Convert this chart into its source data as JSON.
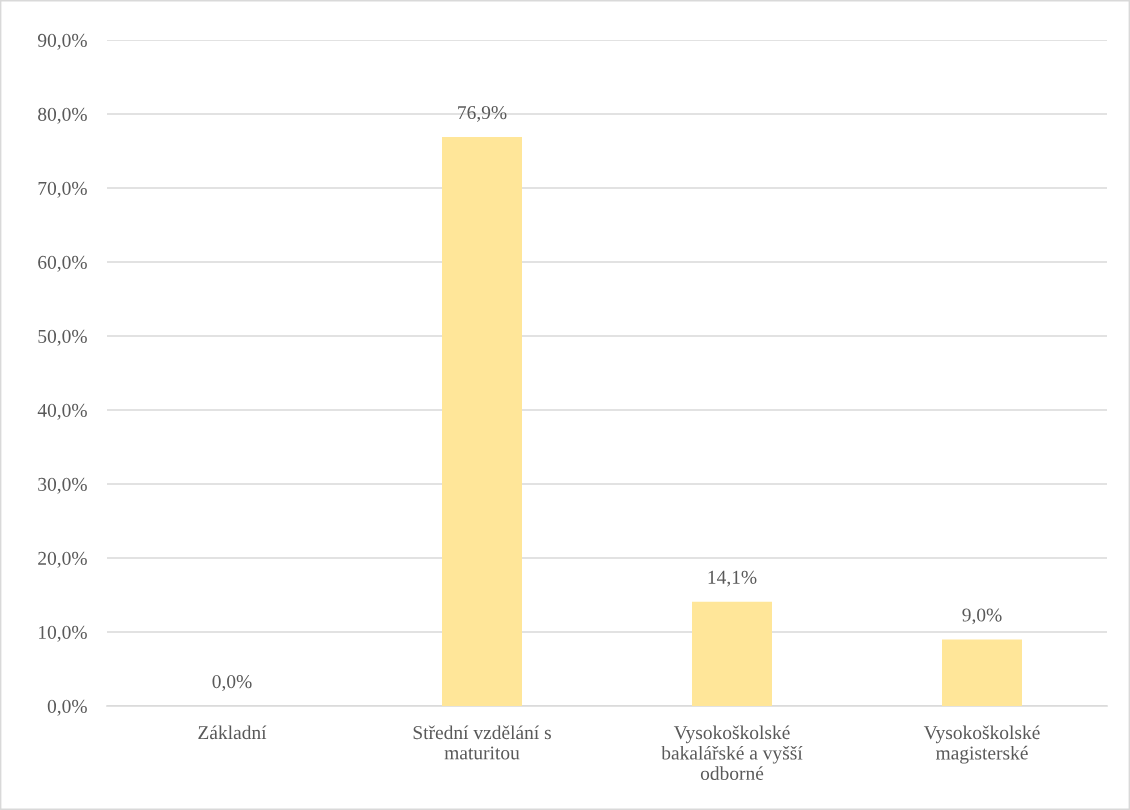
{
  "chart_data": {
    "type": "bar",
    "categories": [
      "Základní",
      "Střední vzdělání s\nmaturitou",
      "Vysokoškolské\nbakalářské a vyšší\nodborné",
      "Vysokoškolské\nmagisterské"
    ],
    "values": [
      0.0,
      76.9,
      14.1,
      9.0
    ],
    "value_labels": [
      "0,0%",
      "76,9%",
      "14,1%",
      "9,0%"
    ],
    "color": "#ffe699",
    "ylim": [
      0,
      90
    ],
    "yticks": [
      {
        "value": 0,
        "label": "0,0%"
      },
      {
        "value": 10,
        "label": "10,0%"
      },
      {
        "value": 20,
        "label": "20,0%"
      },
      {
        "value": 30,
        "label": "30,0%"
      },
      {
        "value": 40,
        "label": "40,0%"
      },
      {
        "value": 50,
        "label": "50,0%"
      },
      {
        "value": 60,
        "label": "60,0%"
      },
      {
        "value": 70,
        "label": "70,0%"
      },
      {
        "value": 80,
        "label": "80,0%"
      },
      {
        "value": 90,
        "label": "90,0%"
      }
    ],
    "grid": "y",
    "legend": false
  }
}
